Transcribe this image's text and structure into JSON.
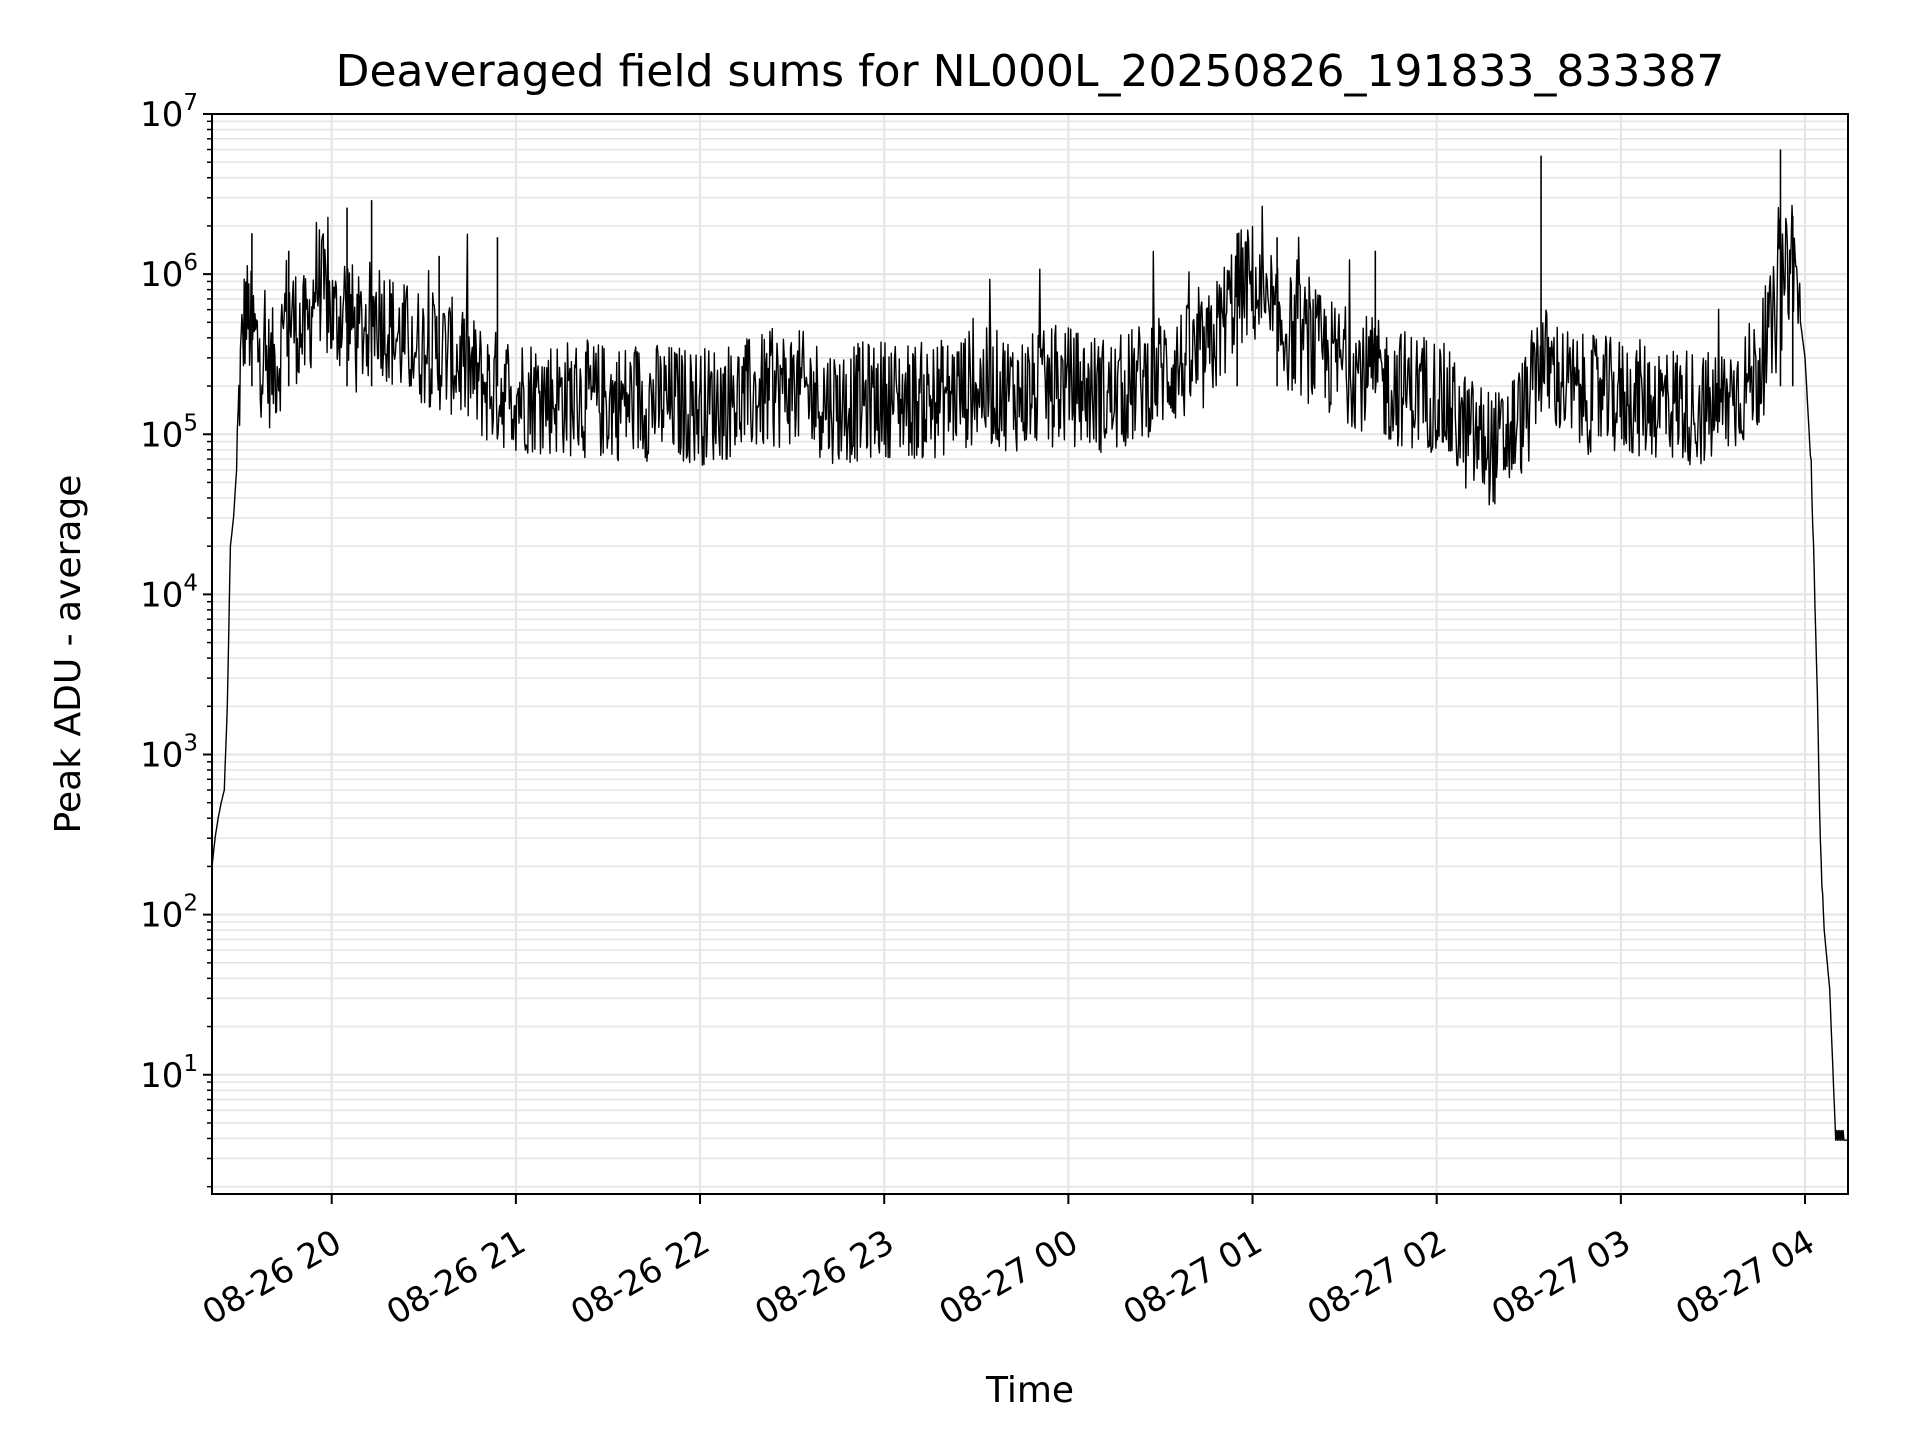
{
  "chart_data": {
    "type": "line",
    "title": "Deaveraged field sums for NL000L_20250826_191833_833387",
    "xlabel": "Time",
    "ylabel": "Peak ADU - average",
    "yscale": "log",
    "ylim": [
      1.8,
      10000000
    ],
    "xlim": [
      "08-26 19:21",
      "08-27 04:14"
    ],
    "grid": true,
    "line_color": "#000000",
    "grid_color": "#e6e6e6",
    "x_ticks": [
      "08-26 20",
      "08-26 21",
      "08-26 22",
      "08-26 23",
      "08-27 00",
      "08-27 01",
      "08-27 02",
      "08-27 03",
      "08-27 04"
    ],
    "y_ticks": [
      {
        "base": "10",
        "exp": "1",
        "value": 10
      },
      {
        "base": "10",
        "exp": "2",
        "value": 100
      },
      {
        "base": "10",
        "exp": "3",
        "value": 1000
      },
      {
        "base": "10",
        "exp": "4",
        "value": 10000
      },
      {
        "base": "10",
        "exp": "5",
        "value": 100000
      },
      {
        "base": "10",
        "exp": "6",
        "value": 1000000
      },
      {
        "base": "10",
        "exp": "7",
        "value": 10000000
      }
    ],
    "series": [
      {
        "x": [
          "08-26 19:21",
          "08-26 19:22",
          "08-26 19:23",
          "08-26 19:24",
          "08-26 19:25",
          "08-26 19:26",
          "08-26 19:27",
          "08-26 19:28",
          "08-26 19:29",
          "08-26 19:30",
          "08-26 19:31",
          "08-26 19:32",
          "08-26 19:33",
          "08-26 19:35",
          "08-26 19:37",
          "08-26 19:40",
          "08-26 19:43",
          "08-26 19:45",
          "08-26 19:48",
          "08-26 19:52",
          "08-26 19:55",
          "08-26 19:58",
          "08-26 20:01",
          "08-26 20:05",
          "08-26 20:08",
          "08-26 20:15",
          "08-26 20:21",
          "08-26 20:30",
          "08-26 20:40",
          "08-26 20:50",
          "08-26 21:00",
          "08-26 21:15",
          "08-26 21:30",
          "08-26 21:45",
          "08-26 22:00",
          "08-26 22:15",
          "08-26 22:30",
          "08-26 22:45",
          "08-26 23:00",
          "08-26 23:15",
          "08-26 23:30",
          "08-26 23:45",
          "08-27 00:00",
          "08-27 00:15",
          "08-27 00:30",
          "08-27 00:45",
          "08-27 00:55",
          "08-27 01:00",
          "08-27 01:05",
          "08-27 01:15",
          "08-27 01:25",
          "08-27 01:35",
          "08-27 01:45",
          "08-27 02:00",
          "08-27 02:10",
          "08-27 02:20",
          "08-27 02:30",
          "08-27 02:33",
          "08-27 02:45",
          "08-27 03:00",
          "08-27 03:15",
          "08-27 03:30",
          "08-27 03:40",
          "08-27 03:45",
          "08-27 03:50",
          "08-27 03:54",
          "08-27 03:56",
          "08-27 03:58",
          "08-27 04:00",
          "08-27 04:02",
          "08-27 04:04",
          "08-27 04:05",
          "08-27 04:06",
          "08-27 04:08",
          "08-27 04:10",
          "08-27 04:14"
        ],
        "y": [
          200,
          300,
          400,
          500,
          600,
          2000,
          20000,
          30000,
          60000,
          200000,
          400000,
          600000,
          500000,
          400000,
          300000,
          250000,
          300000,
          600000,
          500000,
          400000,
          1000000,
          700000,
          500000,
          700000,
          400000,
          600000,
          400000,
          350000,
          300000,
          200000,
          180000,
          170000,
          160000,
          160000,
          150000,
          170000,
          200000,
          150000,
          170000,
          160000,
          200000,
          180000,
          200000,
          170000,
          250000,
          300000,
          800000,
          900000,
          500000,
          400000,
          300000,
          250000,
          200000,
          180000,
          100000,
          80000,
          150000,
          300000,
          180000,
          170000,
          160000,
          140000,
          200000,
          250000,
          500000,
          1000000,
          1500000,
          600000,
          300000,
          60000,
          2500,
          250,
          90,
          35,
          3.9,
          3.9
        ]
      }
    ],
    "spikes": [
      {
        "x": "08-26 19:34",
        "y": 1800000
      },
      {
        "x": "08-26 19:46",
        "y": 1400000
      },
      {
        "x": "08-26 20:05",
        "y": 2600000
      },
      {
        "x": "08-26 20:13",
        "y": 2900000
      },
      {
        "x": "08-26 20:35",
        "y": 1300000
      },
      {
        "x": "08-26 20:54",
        "y": 1700000
      },
      {
        "x": "08-27 00:55",
        "y": 1800000
      },
      {
        "x": "08-27 01:08",
        "y": 1700000
      },
      {
        "x": "08-27 01:40",
        "y": 1400000
      },
      {
        "x": "08-27 02:34",
        "y": 5500000
      },
      {
        "x": "08-27 03:52",
        "y": 6000000
      },
      {
        "x": "08-27 03:56",
        "y": 2300000
      }
    ]
  }
}
